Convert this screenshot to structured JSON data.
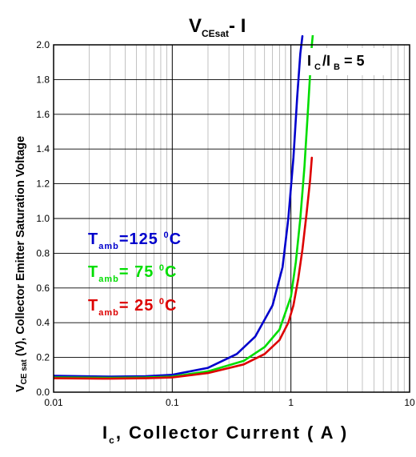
{
  "chart_data": {
    "type": "line",
    "title": {
      "main": "V",
      "sub": "CEsat",
      "suffix": "- I"
    },
    "xlabel": {
      "main": "I",
      "sub": "c",
      "suffix": ", Collector Current ( A )"
    },
    "ylabel": {
      "main": "V",
      "sub": "CE sat",
      "suffix": " (V), Collector Emitter Saturation Voltage"
    },
    "x_scale": "log",
    "xlim": [
      0.01,
      10
    ],
    "ylim": [
      0,
      2.0
    ],
    "x_ticks": [
      0.01,
      0.1,
      1,
      10
    ],
    "x_tick_labels": [
      "0.01",
      "0.1",
      "1",
      "10"
    ],
    "y_ticks": [
      0,
      0.2,
      0.4,
      0.6,
      0.8,
      1.0,
      1.2,
      1.4,
      1.6,
      1.8,
      2.0
    ],
    "y_tick_labels": [
      "0.0",
      "0.2",
      "0.4",
      "0.6",
      "0.8",
      "1.0",
      "1.2",
      "1.4",
      "1.6",
      "1.8",
      "2.0"
    ],
    "grid": true,
    "annotation": {
      "main": "I",
      "sub1": "C",
      "mid": "/I",
      "sub2": "B",
      "suffix": " = 5"
    },
    "series": [
      {
        "name": "T_amb=125 °C",
        "label_main": "T",
        "label_sub": "amb",
        "label_value": "=125 ",
        "label_deg": "0",
        "label_unit": "C",
        "color": "#0000cc",
        "x": [
          0.01,
          0.03,
          0.06,
          0.1,
          0.2,
          0.35,
          0.5,
          0.7,
          0.85,
          0.95,
          1.05,
          1.13,
          1.2,
          1.25
        ],
        "y": [
          0.094,
          0.09,
          0.092,
          0.1,
          0.14,
          0.22,
          0.32,
          0.5,
          0.72,
          1.0,
          1.35,
          1.7,
          1.95,
          2.05
        ]
      },
      {
        "name": "T_amb= 75 °C",
        "label_main": "T",
        "label_sub": "amb",
        "label_value": "= 75 ",
        "label_deg": "0",
        "label_unit": "C",
        "color": "#00dd00",
        "x": [
          0.01,
          0.03,
          0.06,
          0.1,
          0.2,
          0.4,
          0.6,
          0.8,
          1.0,
          1.1,
          1.2,
          1.3,
          1.4,
          1.5,
          1.55
        ],
        "y": [
          0.085,
          0.083,
          0.085,
          0.09,
          0.12,
          0.18,
          0.26,
          0.36,
          0.55,
          0.75,
          1.0,
          1.3,
          1.65,
          2.0,
          2.1
        ]
      },
      {
        "name": "T_amb= 25 °C",
        "label_main": "T",
        "label_sub": "amb",
        "label_value": "= 25 ",
        "label_deg": "0",
        "label_unit": "C",
        "color": "#dd0000",
        "x": [
          0.01,
          0.03,
          0.06,
          0.1,
          0.2,
          0.4,
          0.6,
          0.8,
          0.95,
          1.05,
          1.15,
          1.25,
          1.35,
          1.45,
          1.5
        ],
        "y": [
          0.08,
          0.078,
          0.08,
          0.085,
          0.11,
          0.16,
          0.22,
          0.3,
          0.4,
          0.5,
          0.65,
          0.82,
          1.02,
          1.22,
          1.35
        ]
      }
    ]
  }
}
